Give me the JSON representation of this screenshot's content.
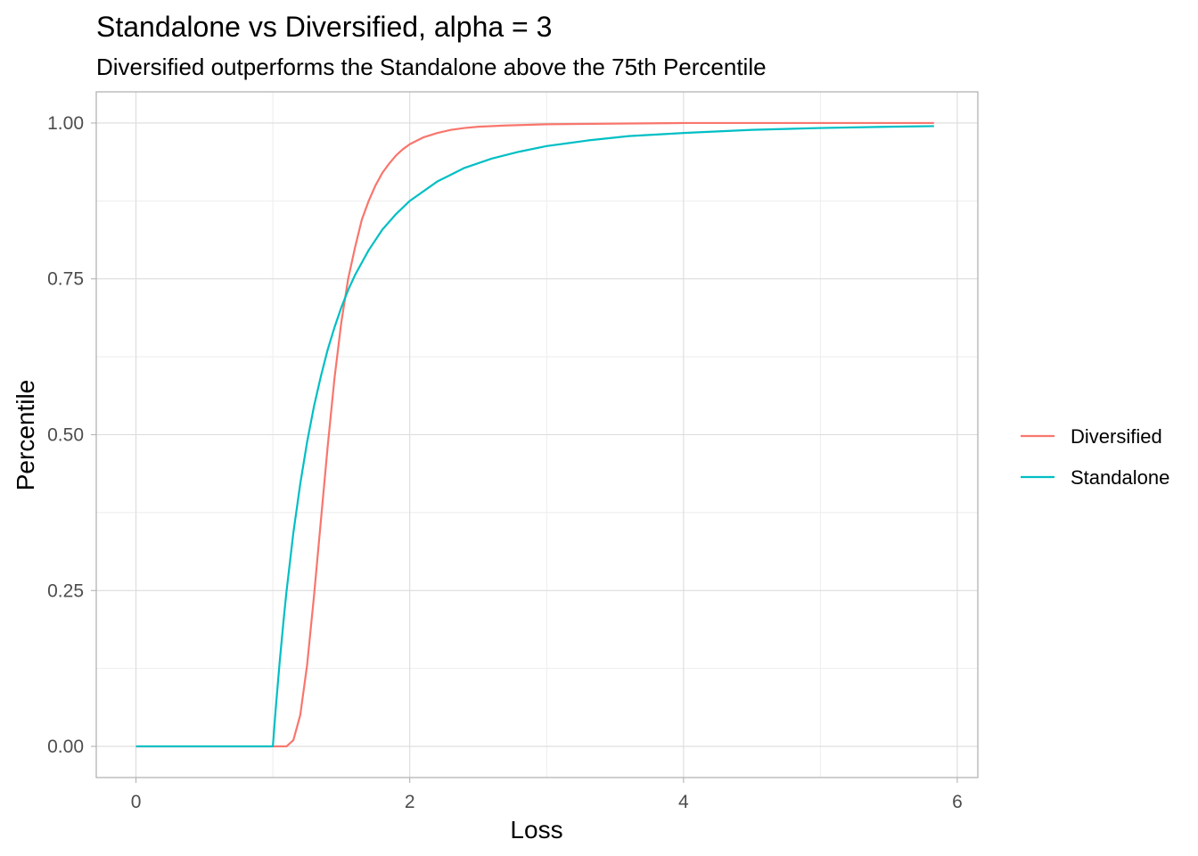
{
  "chart_data": {
    "type": "line",
    "title": "Standalone vs Diversified, alpha = 3",
    "subtitle": "Diversified outperforms the Standalone above the 75th Percentile",
    "xlabel": "Loss",
    "ylabel": "Percentile",
    "xlim": [
      -0.29,
      6.15
    ],
    "ylim": [
      -0.05,
      1.05
    ],
    "x_ticks": [
      0,
      2,
      4,
      6
    ],
    "x_tick_labels": [
      "0",
      "2",
      "4",
      "6"
    ],
    "y_ticks": [
      0,
      0.25,
      0.5,
      0.75,
      1.0
    ],
    "y_tick_labels": [
      "0.00",
      "0.25",
      "0.50",
      "0.75",
      "1.00"
    ],
    "grid": true,
    "legend_position": "right",
    "legend": [
      "Diversified",
      "Standalone"
    ],
    "series": [
      {
        "name": "Diversified",
        "color": "#F8766D",
        "x": [
          0,
          1.0,
          1.1,
          1.15,
          1.2,
          1.25,
          1.3,
          1.35,
          1.4,
          1.45,
          1.5,
          1.55,
          1.6,
          1.65,
          1.7,
          1.75,
          1.8,
          1.85,
          1.9,
          1.95,
          2.0,
          2.1,
          2.2,
          2.3,
          2.4,
          2.5,
          2.7,
          3.0,
          3.5,
          4.0,
          5.0,
          5.83
        ],
        "y": [
          0,
          0,
          0,
          0.01,
          0.05,
          0.13,
          0.24,
          0.36,
          0.48,
          0.59,
          0.68,
          0.75,
          0.8,
          0.845,
          0.875,
          0.9,
          0.92,
          0.935,
          0.948,
          0.958,
          0.966,
          0.977,
          0.984,
          0.989,
          0.992,
          0.994,
          0.996,
          0.998,
          0.999,
          1.0,
          1.0,
          1.0
        ]
      },
      {
        "name": "Standalone",
        "color": "#00BFC4",
        "x": [
          0,
          1.0,
          1.02,
          1.05,
          1.08,
          1.1,
          1.15,
          1.2,
          1.25,
          1.3,
          1.35,
          1.4,
          1.45,
          1.5,
          1.55,
          1.6,
          1.7,
          1.8,
          1.9,
          2.0,
          2.2,
          2.4,
          2.6,
          2.8,
          3.0,
          3.3,
          3.6,
          4.0,
          4.5,
          5.0,
          5.5,
          5.83
        ],
        "y": [
          0,
          0,
          0.058,
          0.136,
          0.206,
          0.249,
          0.343,
          0.421,
          0.488,
          0.545,
          0.593,
          0.636,
          0.672,
          0.704,
          0.732,
          0.756,
          0.796,
          0.829,
          0.854,
          0.875,
          0.906,
          0.928,
          0.943,
          0.954,
          0.963,
          0.972,
          0.979,
          0.984,
          0.989,
          0.992,
          0.994,
          0.995
        ]
      }
    ]
  }
}
